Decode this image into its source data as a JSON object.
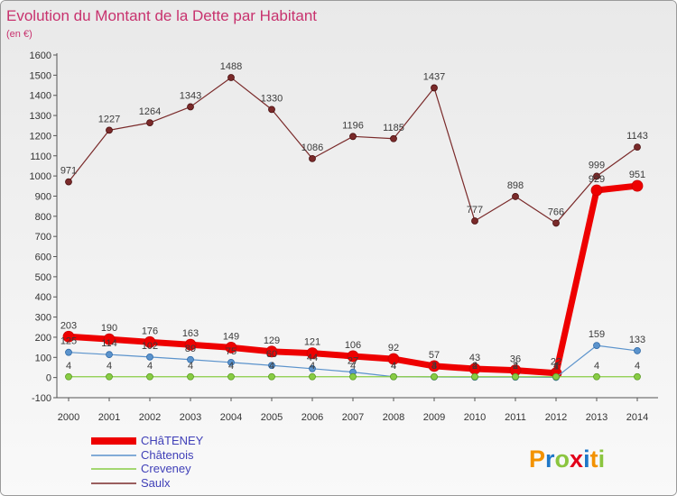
{
  "chart_data": {
    "type": "line",
    "title": "Evolution du Montant de la Dette par Habitant",
    "subtitle": "(en €)",
    "xlabel": "",
    "ylabel": "",
    "x": [
      2000,
      2001,
      2002,
      2003,
      2004,
      2005,
      2006,
      2007,
      2008,
      2009,
      2010,
      2011,
      2012,
      2013,
      2014
    ],
    "ylim": [
      -100,
      1600
    ],
    "y_ticks": [
      -100,
      0,
      100,
      200,
      300,
      400,
      500,
      600,
      700,
      800,
      900,
      1000,
      1100,
      1200,
      1300,
      1400,
      1500,
      1600
    ],
    "grid": false,
    "legend_position": "bottom-left",
    "series": [
      {
        "name": "CHâTENEY",
        "color": "#ee0000",
        "values": [
          203,
          190,
          176,
          163,
          149,
          129,
          121,
          106,
          92,
          57,
          43,
          36,
          22,
          929,
          951
        ]
      },
      {
        "name": "Châtenois",
        "color": "#5b93cc",
        "values": [
          125,
          114,
          102,
          89,
          75,
          60,
          44,
          27,
          4,
          3,
          2,
          2,
          1,
          159,
          133
        ]
      },
      {
        "name": "Creveney",
        "color": "#88cc44",
        "values": [
          4,
          4,
          4,
          4,
          4,
          4,
          4,
          4,
          4,
          4,
          4,
          4,
          4,
          4,
          4
        ]
      },
      {
        "name": "Saulx",
        "color": "#7a2a2a",
        "values": [
          971,
          1227,
          1264,
          1343,
          1488,
          1330,
          1086,
          1196,
          1185,
          1437,
          777,
          898,
          766,
          999,
          1143
        ]
      }
    ]
  },
  "logo": {
    "text": "Proxiti",
    "letter_colors": [
      "#f39200",
      "#1f78c8",
      "#8bc53f",
      "#e2001a",
      "#1f78c8",
      "#f39200",
      "#8bc53f"
    ]
  }
}
